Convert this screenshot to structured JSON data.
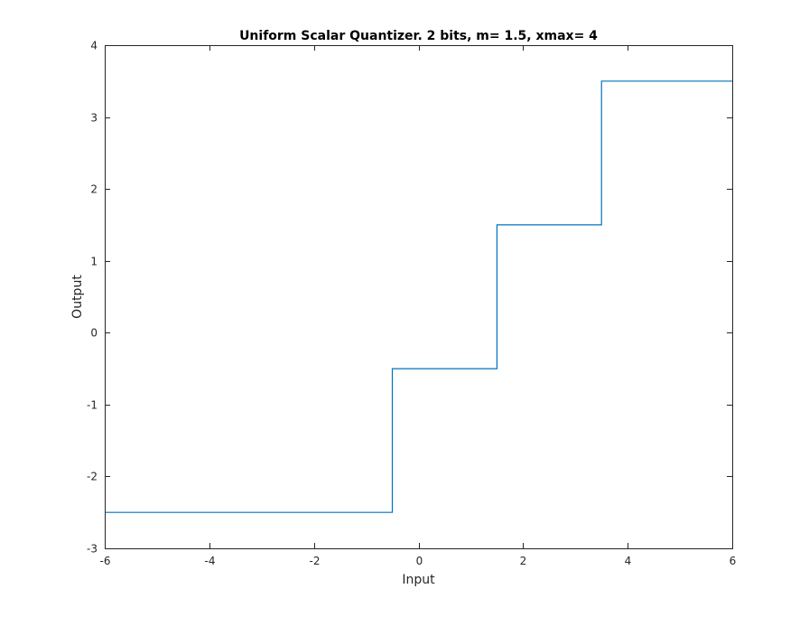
{
  "chart_data": {
    "type": "line",
    "title": "Uniform Scalar Quantizer. 2 bits, m= 1.5, xmax= 4",
    "xlabel": "Input",
    "ylabel": "Output",
    "xlim": [
      -6,
      6
    ],
    "ylim": [
      -3,
      4
    ],
    "x_ticks": [
      -6,
      -4,
      -2,
      0,
      2,
      4,
      6
    ],
    "y_ticks": [
      -3,
      -2,
      -1,
      0,
      1,
      2,
      3,
      4
    ],
    "x_tick_labels": [
      "-6",
      "-4",
      "-2",
      "0",
      "2",
      "4",
      "6"
    ],
    "y_tick_labels": [
      "-3",
      "-2",
      "-1",
      "0",
      "1",
      "2",
      "3",
      "4"
    ],
    "grid": false,
    "series": [
      {
        "color": "#0072BD",
        "x": [
          -6,
          -0.5,
          -0.5,
          1.5,
          1.5,
          3.5,
          3.5,
          6
        ],
        "y": [
          -2.5,
          -2.5,
          -0.5,
          -0.5,
          1.5,
          1.5,
          3.5,
          3.5
        ]
      }
    ]
  }
}
